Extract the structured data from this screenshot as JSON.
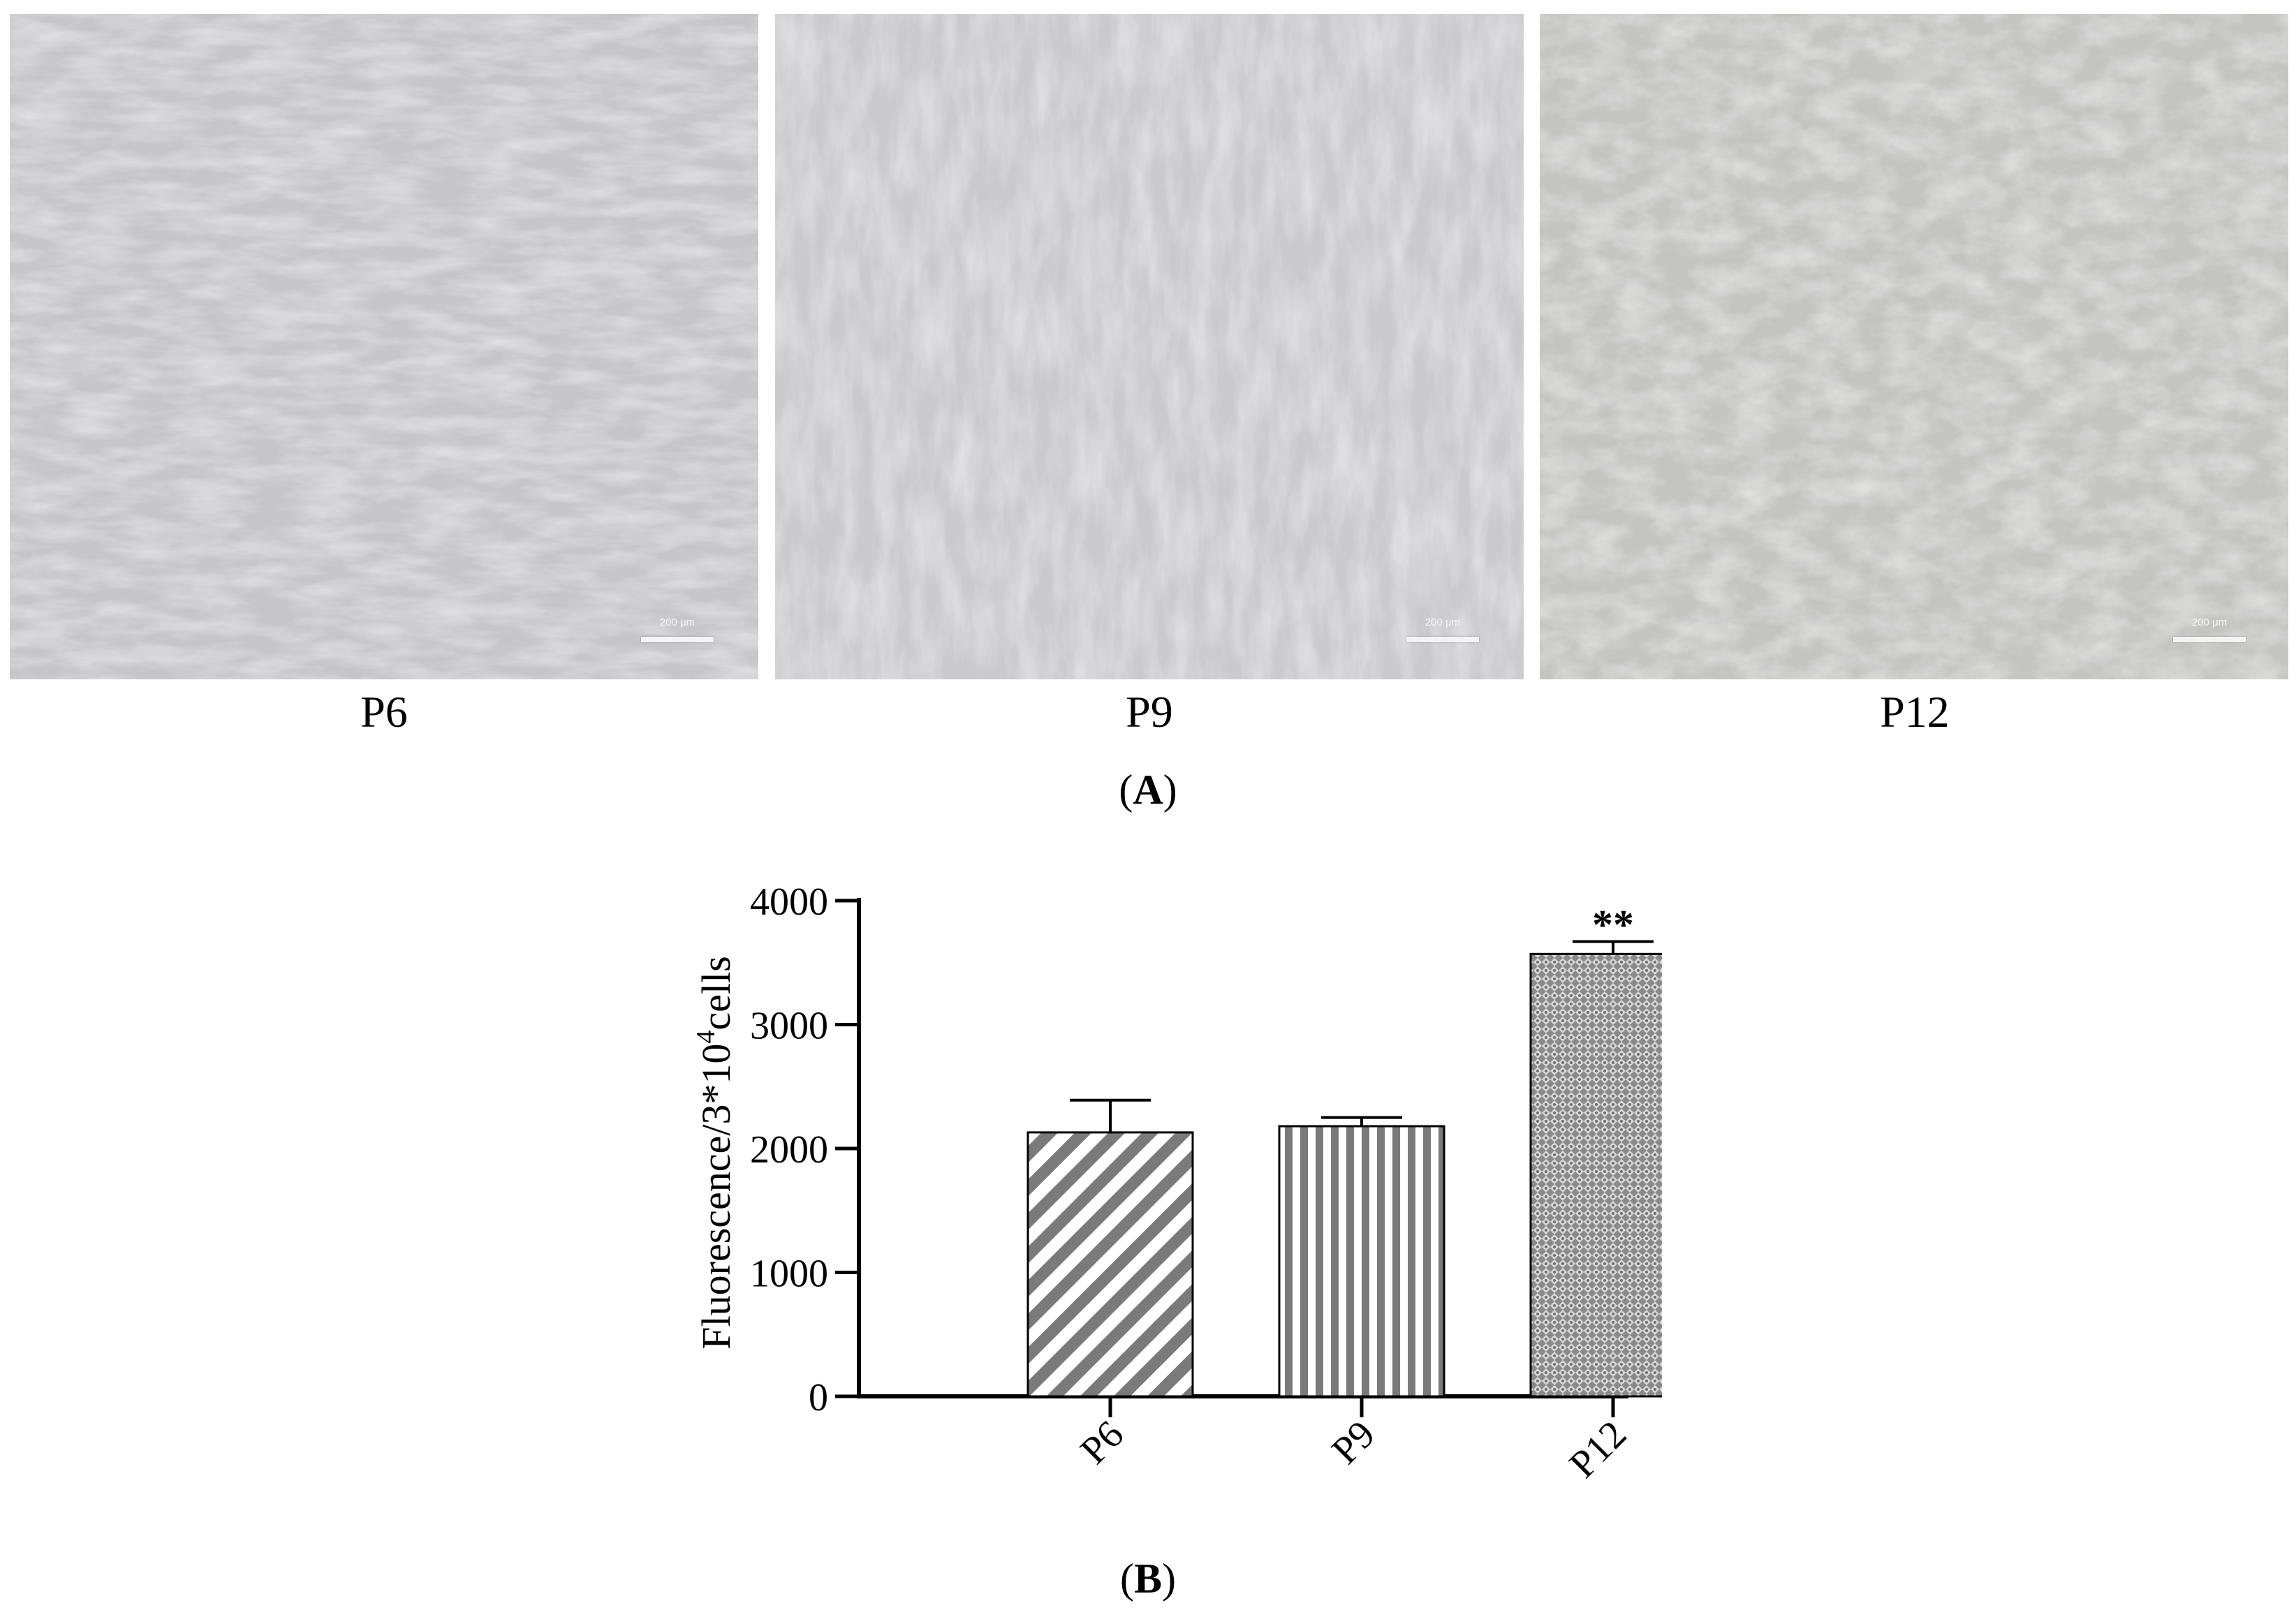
{
  "panel_a": {
    "label": "A",
    "images": [
      {
        "caption": "P6",
        "scale_bar": "200 μm"
      },
      {
        "caption": "P9",
        "scale_bar": "200 μm"
      },
      {
        "caption": "P12",
        "scale_bar": "200 μm"
      }
    ]
  },
  "panel_b": {
    "label": "B"
  },
  "colors": {
    "micrograph_base": "#c3c3c6",
    "bar_fill": "#7a7a7a",
    "axis": "#000000"
  },
  "chart_data": {
    "type": "bar",
    "categories": [
      "P6",
      "P9",
      "P12"
    ],
    "values": [
      2130,
      2180,
      3570
    ],
    "error_upper": [
      2390,
      2250,
      3670
    ],
    "patterns": [
      "diagonal-stripes",
      "vertical-stripes",
      "crosshatch-dots"
    ],
    "significance": [
      "",
      "",
      "**"
    ],
    "ylabel": "Fluorescence/3*10",
    "ylabel_superscript": "4",
    "ylabel_suffix": "cells",
    "ylim": [
      0,
      4000
    ],
    "yticks": [
      0,
      1000,
      2000,
      3000,
      4000
    ],
    "grid": false
  }
}
